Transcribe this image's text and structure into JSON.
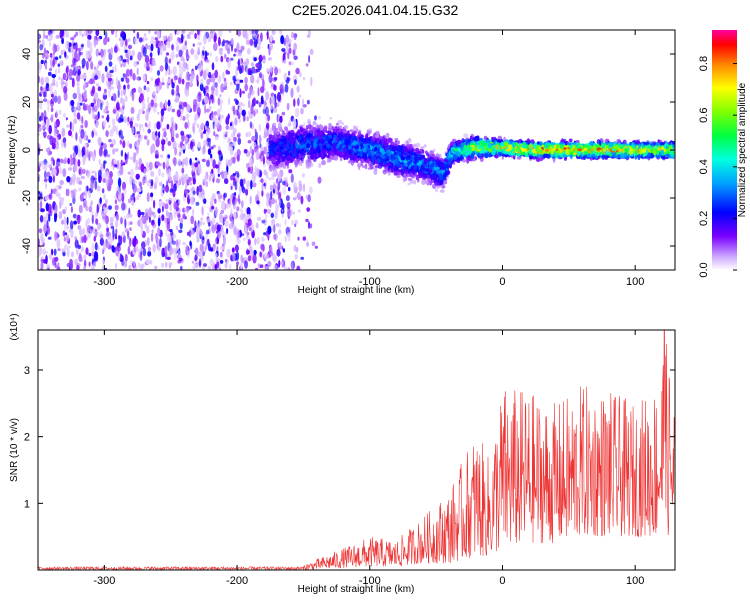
{
  "figure": {
    "title": "C2E5.2026.041.04.15.G32"
  },
  "chart_data": [
    {
      "type": "heatmap",
      "title": "C2E5.2026.041.04.15.G32",
      "xlabel": "Height of straight line (km)",
      "ylabel": "Frequency (Hz)",
      "xlim": [
        -350,
        130
      ],
      "ylim": [
        -50,
        50
      ],
      "xticks": [
        -300,
        -200,
        -100,
        0,
        100
      ],
      "yticks": [
        -40,
        -20,
        0,
        20,
        40
      ],
      "noise_region_x": [
        -350,
        -140
      ],
      "signal_band": {
        "x": [
          -175,
          -150,
          -125,
          -100,
          -75,
          -55,
          -45,
          -38,
          -30,
          -20,
          0,
          25,
          50,
          75,
          100,
          130
        ],
        "center_hz": [
          0,
          2,
          3,
          0,
          -4,
          -7,
          -10,
          -1,
          0,
          1,
          1,
          0,
          0,
          0,
          0,
          0
        ],
        "half_width_hz": [
          8,
          8,
          7,
          7,
          7,
          6,
          6,
          4,
          4,
          4,
          3,
          3,
          3,
          3,
          3,
          3
        ],
        "peak_amplitude": [
          0.25,
          0.3,
          0.3,
          0.35,
          0.35,
          0.35,
          0.35,
          0.45,
          0.6,
          0.65,
          0.75,
          0.85,
          0.85,
          0.8,
          0.75,
          0.7
        ]
      },
      "colorbar": {
        "label": "Normalized spectral amplitude",
        "range": [
          0.0,
          0.93
        ],
        "ticks": [
          0.0,
          0.2,
          0.4,
          0.6,
          0.8
        ],
        "tick_labels": [
          "0.0",
          "0.2",
          "0.4",
          "0.6",
          "0.8"
        ]
      }
    },
    {
      "type": "line",
      "xlabel": "Height of straight line (km)",
      "ylabel": "SNR (10 * v/v)",
      "multiplier_label": "(x10⁴)",
      "xlim": [
        -350,
        130
      ],
      "ylim": [
        0,
        3.6
      ],
      "xticks": [
        -300,
        -200,
        -100,
        0,
        100
      ],
      "yticks": [
        1,
        2,
        3
      ],
      "series": [
        {
          "name": "SNR",
          "color": "#ee3333",
          "envelope_x": [
            -350,
            -150,
            -100,
            -80,
            -60,
            -40,
            -20,
            -10,
            0,
            20,
            40,
            60,
            80,
            100,
            115,
            122,
            130
          ],
          "envelope_max": [
            0.06,
            0.08,
            0.5,
            0.45,
            0.8,
            1.2,
            2.1,
            1.7,
            2.8,
            2.7,
            2.5,
            2.8,
            2.7,
            2.5,
            2.8,
            3.6,
            2.6
          ],
          "envelope_min": [
            0.0,
            0.0,
            0.05,
            0.05,
            0.1,
            0.1,
            0.2,
            0.2,
            0.3,
            0.4,
            0.4,
            0.5,
            0.5,
            0.5,
            0.5,
            0.5,
            0.5
          ]
        }
      ]
    }
  ],
  "colors": {
    "colormap": [
      "#ffffff",
      "#d9b8ff",
      "#9b30ff",
      "#5a00ff",
      "#0000ff",
      "#00c8ff",
      "#00ff80",
      "#80ff00",
      "#ffff00",
      "#ff8000",
      "#ff0000",
      "#ff00a0"
    ],
    "snr_line": "#ee3333"
  }
}
